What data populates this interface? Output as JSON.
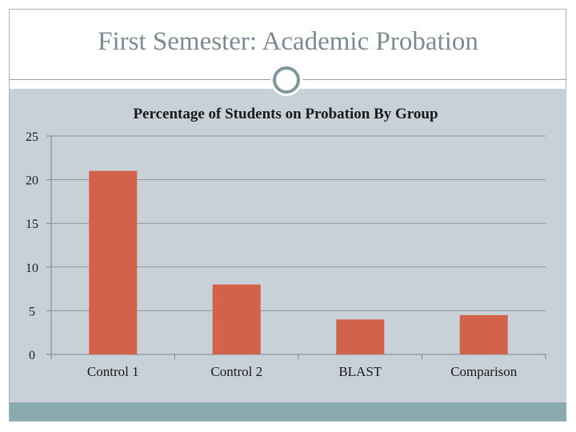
{
  "slide": {
    "title": "First Semester: Academic Probation"
  },
  "colors": {
    "bar": "#d2634a",
    "panel": "#c8d1d7",
    "footer": "#8aaab0",
    "title_text": "#7b8b92",
    "ornament": "#7f969c"
  },
  "chart_data": {
    "type": "bar",
    "title": "Percentage of Students on Probation By Group",
    "categories": [
      "Control 1",
      "Control 2",
      "BLAST",
      "Comparison"
    ],
    "values": [
      21,
      8,
      4,
      4.5
    ],
    "yticks": [
      "0",
      "5",
      "10",
      "15",
      "20",
      "25"
    ],
    "ylim": [
      0,
      25
    ],
    "grid": true,
    "xlabel": "",
    "ylabel": "",
    "legend": "none"
  }
}
